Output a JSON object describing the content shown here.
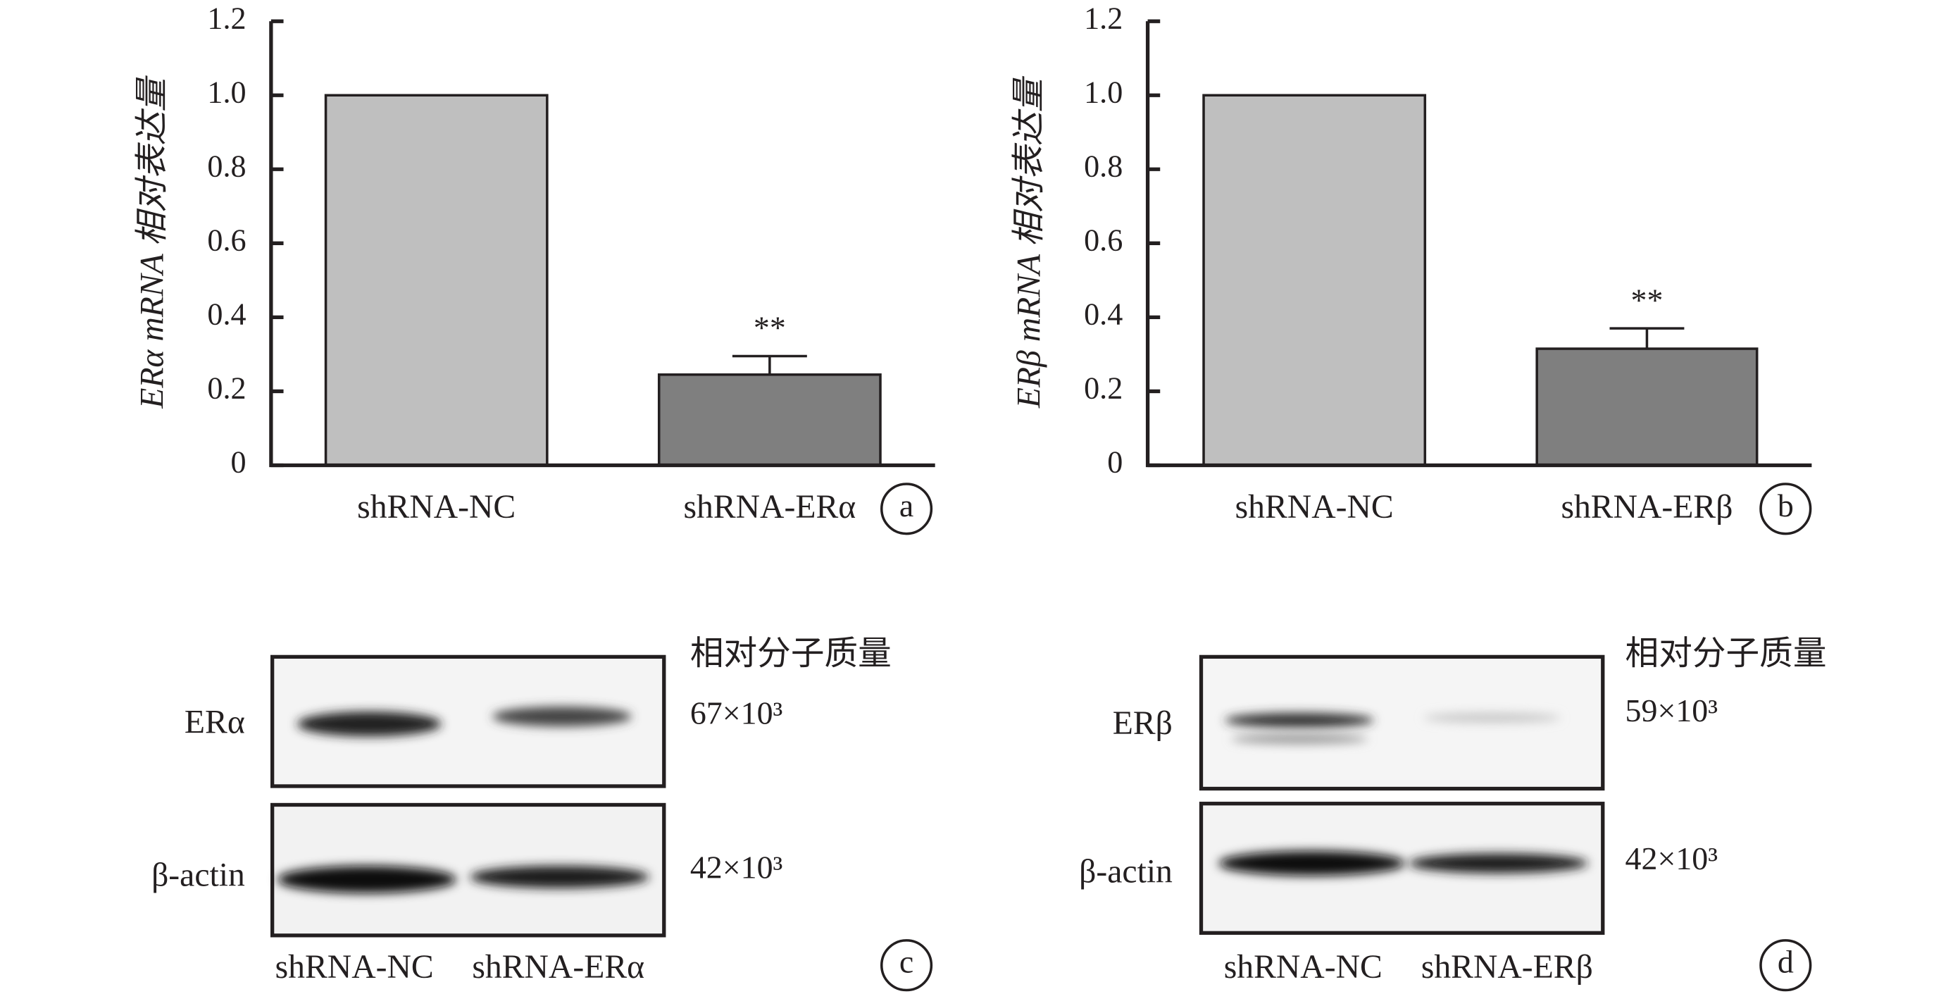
{
  "chart_data": [
    {
      "type": "bar",
      "ylabel": "ERα mRNA 相对表达量",
      "categories": [
        "shRNA-NC",
        "shRNA-ERα"
      ],
      "values": [
        1,
        0.245
      ],
      "errors": [
        null,
        0.05
      ],
      "colors": [
        "#bfbfbf",
        "#7f7f7f"
      ],
      "annotations": [
        null,
        "**"
      ],
      "ylim": [
        0,
        1.2
      ],
      "yticks": [
        0,
        0.2,
        0.4,
        0.6,
        0.8,
        {
          "value": 1,
          "label": "1.0"
        },
        1.2
      ],
      "panel": "a"
    },
    {
      "type": "bar",
      "ylabel": "ERβ mRNA 相对表达量",
      "categories": [
        "shRNA-NC",
        "shRNA-ERβ"
      ],
      "values": [
        1,
        0.315
      ],
      "errors": [
        null,
        0.055
      ],
      "colors": [
        "#bfbfbf",
        "#7f7f7f"
      ],
      "annotations": [
        null,
        "**"
      ],
      "ylim": [
        0,
        1.2
      ],
      "yticks": [
        0,
        0.2,
        0.4,
        0.6,
        0.8,
        {
          "value": 1,
          "label": "1.0"
        },
        1.2
      ],
      "panel": "b"
    }
  ],
  "blots": [
    {
      "header": "相对分子质量",
      "proteins": [
        "ERα",
        "β-actin"
      ],
      "sizes": [
        "67×10³",
        "42×10³"
      ],
      "lanes": [
        "shRNA-NC",
        "shRNA-ERα"
      ],
      "panel": "c"
    },
    {
      "header": "相对分子质量",
      "proteins": [
        "ERβ",
        "β-actin"
      ],
      "sizes": [
        "59×10³",
        "42×10³"
      ],
      "lanes": [
        "shRNA-NC",
        "shRNA-ERβ"
      ],
      "panel": "d"
    }
  ]
}
